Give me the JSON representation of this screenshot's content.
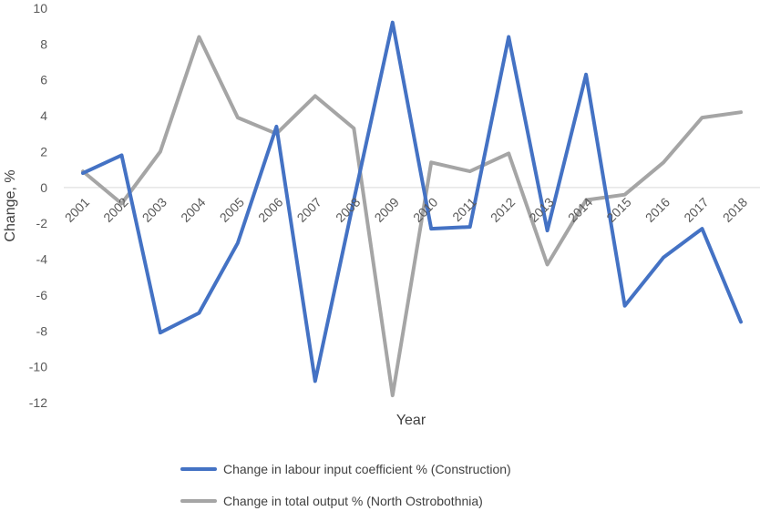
{
  "chart_data": {
    "type": "line",
    "title": "",
    "xlabel": "Year",
    "ylabel": "Change, %",
    "ylim": [
      -12,
      10
    ],
    "ytick_step": 2,
    "grid": false,
    "legend_position": "bottom",
    "categories": [
      "2001",
      "2002",
      "2003",
      "2004",
      "2005",
      "2006",
      "2007",
      "2008",
      "2009",
      "2010",
      "2011",
      "2012",
      "2013",
      "2014",
      "2015",
      "2016",
      "2017",
      "2018"
    ],
    "series": [
      {
        "name": "Change in labour input coefficient % (Construction)",
        "color": "#4472C4",
        "values": [
          0.8,
          1.8,
          -8.1,
          -7.0,
          -3.1,
          3.4,
          -10.8,
          -0.7,
          9.2,
          -2.3,
          -2.2,
          8.4,
          -2.4,
          6.3,
          -6.6,
          -3.9,
          -2.3,
          -7.5
        ]
      },
      {
        "name": "Change in total output % (North Ostrobothnia)",
        "color": "#A5A5A5",
        "values": [
          0.9,
          -0.9,
          2.0,
          8.4,
          3.9,
          3.0,
          5.1,
          3.3,
          -11.6,
          1.4,
          0.9,
          1.9,
          -4.3,
          -0.7,
          -0.4,
          1.4,
          3.9,
          4.2
        ]
      }
    ]
  }
}
